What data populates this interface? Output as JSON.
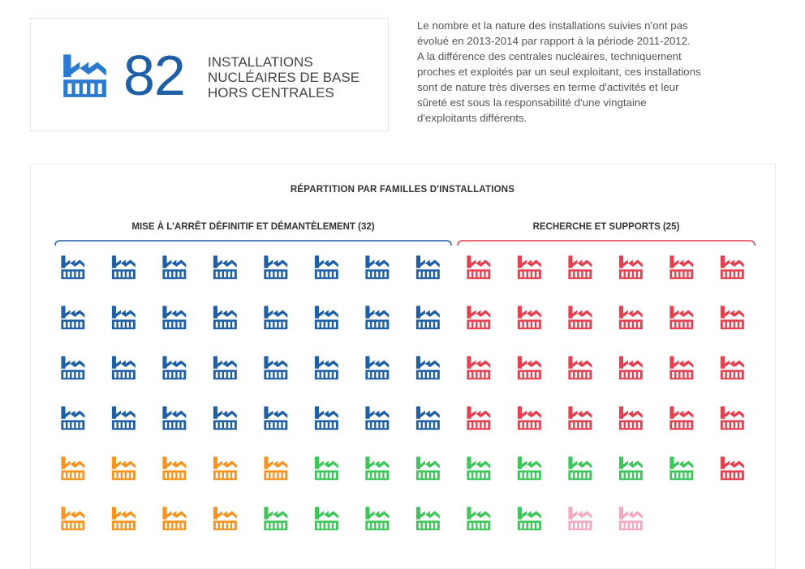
{
  "kpi": {
    "number": "82",
    "label_lines": [
      "INSTALLATIONS",
      "NUCLÉAIRES DE BASE",
      "HORS CENTRALES"
    ],
    "icon": "factory-icon",
    "color": "#1f5fa6"
  },
  "intro": {
    "lines": [
      "Le nombre et la nature des installations suivies n'ont pas",
      "évolué en 2013-2014 par rapport à la période 2011-2012.",
      "A la différence des centrales nucléaires, techniquement",
      "proches et exploités par un seul exploitant, ces installations",
      "sont de nature très diverses en terme d'activités et leur",
      "sûreté est sous la responsabilité d'une vingtaine",
      "d'exploitants différents."
    ]
  },
  "chart_data": {
    "type": "pictogram",
    "title": "RÉPARTITION PAR FAMILLES D'INSTALLATIONS",
    "icon": "factory-icon",
    "total": 82,
    "labeled_groups": [
      {
        "label": "MISE À L'ARRÊT DÉFINITIF ET DÉMANTÈLEMENT (32)",
        "count": 32,
        "color": "#1f5fa6"
      },
      {
        "label": "RECHERCHE ET SUPPORTS (25)",
        "count": 25,
        "color": "#e5404f"
      }
    ],
    "families": [
      {
        "count": 32,
        "color": "#1f5fa6"
      },
      {
        "count": 25,
        "color": "#e5404f"
      },
      {
        "count": 9,
        "color": "#f7931e"
      },
      {
        "count": 14,
        "color": "#3ec65a"
      },
      {
        "count": 2,
        "color": "#f5a8bf"
      }
    ],
    "grid": [
      [
        "blue",
        "blue",
        "blue",
        "blue",
        "blue",
        "blue",
        "blue",
        "blue",
        "red",
        "red",
        "red",
        "red",
        "red",
        "red"
      ],
      [
        "blue",
        "blue",
        "blue",
        "blue",
        "blue",
        "blue",
        "blue",
        "blue",
        "red",
        "red",
        "red",
        "red",
        "red",
        "red"
      ],
      [
        "blue",
        "blue",
        "blue",
        "blue",
        "blue",
        "blue",
        "blue",
        "blue",
        "red",
        "red",
        "red",
        "red",
        "red",
        "red"
      ],
      [
        "blue",
        "blue",
        "blue",
        "blue",
        "blue",
        "blue",
        "blue",
        "blue",
        "red",
        "red",
        "red",
        "red",
        "red",
        "red"
      ],
      [
        "orange",
        "orange",
        "orange",
        "orange",
        "orange",
        "green",
        "green",
        "green",
        "green",
        "green",
        "green",
        "green",
        "green",
        "red"
      ],
      [
        "orange",
        "orange",
        "orange",
        "orange",
        "green",
        "green",
        "green",
        "green",
        "green",
        "green",
        "pink",
        "pink"
      ]
    ],
    "palette": {
      "blue": "#1f5fa6",
      "red": "#e5404f",
      "orange": "#f7931e",
      "green": "#3ec65a",
      "pink": "#f5a8bf"
    }
  }
}
